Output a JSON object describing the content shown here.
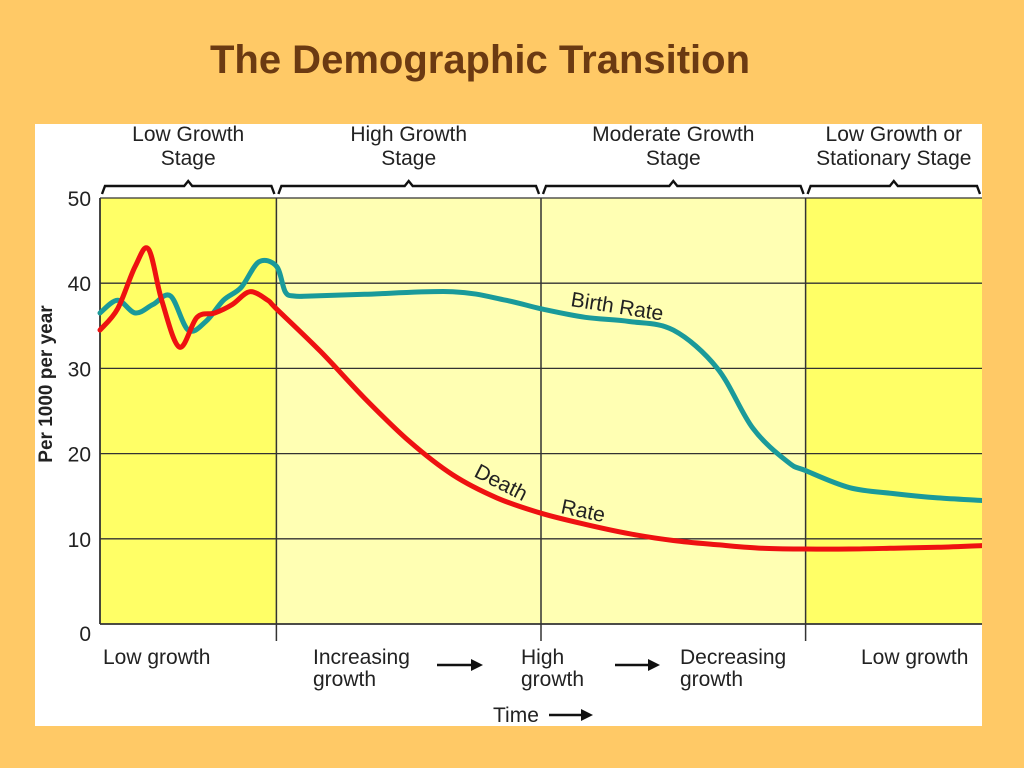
{
  "slide": {
    "title": "The Demographic Transition"
  },
  "chart_data": {
    "type": "line",
    "title": "",
    "ylabel": "Per 1000 per year",
    "xlabel": "Time",
    "ylim": [
      0,
      50
    ],
    "yticks": [
      0,
      10,
      20,
      30,
      40,
      50
    ],
    "grid": true,
    "stages": [
      {
        "label_line1": "Low Growth",
        "label_line2": "Stage",
        "start": 0.0,
        "end": 0.2,
        "shade": "#FFFF66"
      },
      {
        "label_line1": "High Growth",
        "label_line2": "Stage",
        "start": 0.2,
        "end": 0.5,
        "shade": "#FFFFB3"
      },
      {
        "label_line1": "Moderate Growth",
        "label_line2": "Stage",
        "start": 0.5,
        "end": 0.8,
        "shade": "#FFFFB3"
      },
      {
        "label_line1": "Low Growth or",
        "label_line2": "Stationary Stage",
        "start": 0.8,
        "end": 1.0,
        "shade": "#FFFF66"
      }
    ],
    "bottom_labels": [
      {
        "line1": "Low growth",
        "line2": ""
      },
      {
        "line1": "Increasing",
        "line2": "growth"
      },
      {
        "line1": "High",
        "line2": "growth"
      },
      {
        "line1": "Decreasing",
        "line2": "growth"
      },
      {
        "line1": "Low growth",
        "line2": ""
      }
    ],
    "series": [
      {
        "name": "Birth Rate",
        "color": "#1A9A9A",
        "x": [
          0.0,
          0.02,
          0.04,
          0.06,
          0.08,
          0.1,
          0.12,
          0.14,
          0.16,
          0.18,
          0.2,
          0.21,
          0.22,
          0.24,
          0.3,
          0.4,
          0.46,
          0.5,
          0.55,
          0.6,
          0.65,
          0.7,
          0.74,
          0.78,
          0.8,
          0.85,
          0.9,
          0.95,
          1.0
        ],
        "y": [
          36.5,
          38.0,
          36.5,
          37.5,
          38.5,
          34.5,
          35.5,
          38.0,
          39.5,
          42.5,
          42.0,
          39.0,
          38.5,
          38.5,
          38.7,
          39.0,
          38.0,
          37.0,
          36.0,
          35.5,
          34.5,
          30.0,
          23.0,
          19.0,
          18.0,
          16.0,
          15.3,
          14.8,
          14.5
        ]
      },
      {
        "name": "Death Rate",
        "color": "#EE1111",
        "x": [
          0.0,
          0.02,
          0.04,
          0.055,
          0.07,
          0.09,
          0.11,
          0.13,
          0.15,
          0.17,
          0.19,
          0.2,
          0.25,
          0.3,
          0.35,
          0.4,
          0.45,
          0.5,
          0.55,
          0.6,
          0.65,
          0.7,
          0.75,
          0.8,
          0.85,
          0.9,
          0.95,
          1.0
        ],
        "y": [
          34.5,
          37.0,
          42.0,
          44.0,
          38.0,
          32.5,
          36.0,
          36.5,
          37.5,
          39.0,
          38.0,
          37.0,
          32.0,
          26.5,
          21.5,
          17.5,
          14.8,
          13.0,
          11.7,
          10.6,
          9.8,
          9.3,
          8.9,
          8.8,
          8.8,
          8.9,
          9.0,
          9.2
        ]
      }
    ],
    "annotations": [
      {
        "text": "Birth Rate",
        "series": "Birth Rate"
      },
      {
        "text": "Death",
        "series": "Death Rate"
      },
      {
        "text": "Rate",
        "series": "Death Rate"
      }
    ]
  }
}
